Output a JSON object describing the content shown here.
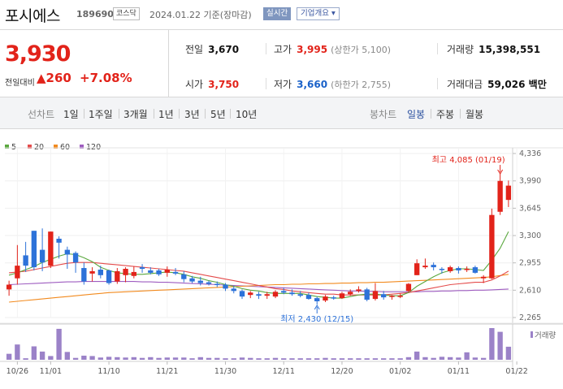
{
  "header": {
    "name": "포시에스",
    "code": "189690",
    "market": "코스닥",
    "date": "2024.01.22  기준(장마감)",
    "realtime": "실시간",
    "company_info": "기업개요 ▾"
  },
  "quote": {
    "price": "3,930",
    "change_label": "전일대비",
    "change": "▲260",
    "percent": "+7.08%"
  },
  "stats": {
    "prev_label": "전일",
    "prev": "3,670",
    "high_label": "고가",
    "high": "3,995",
    "high_limit": "(상한가 5,100)",
    "volume_label": "거래량",
    "volume": "15,398,551",
    "open_label": "시가",
    "open": "3,750",
    "low_label": "저가",
    "low": "3,660",
    "low_limit": "(하한가 2,755)",
    "amount_label": "거래대금",
    "amount": "59,026 백만"
  },
  "tabs": {
    "line_chart": "선차트",
    "periods": [
      "1일",
      "1주일",
      "3개월",
      "1년",
      "3년",
      "5년",
      "10년"
    ],
    "candle_chart": "봉차트",
    "candles": [
      "일봉",
      "주봉",
      "월봉"
    ]
  },
  "legend": [
    {
      "label": "5",
      "color": "#5aa83e"
    },
    {
      "label": "20",
      "color": "#e44b4b"
    },
    {
      "label": "60",
      "color": "#f28a1e"
    },
    {
      "label": "120",
      "color": "#9e5cc0"
    }
  ],
  "chart_data": {
    "type": "candlestick",
    "y_ticks": [
      2265,
      2610,
      2955,
      3300,
      3645,
      3990,
      4336
    ],
    "y_tick_labels": [
      "2,265",
      "2,610",
      "2,955",
      "3,300",
      "3,645",
      "3,990",
      "4,336"
    ],
    "ylim": [
      2265,
      4336
    ],
    "x_tick_labels": [
      "10/26",
      "11/01",
      "11/10",
      "11/21",
      "11/30",
      "12/11",
      "12/20",
      "01/02",
      "01/11",
      "01/22"
    ],
    "x_tick_index": [
      1,
      5,
      12,
      19,
      26,
      33,
      40,
      47,
      54,
      61
    ],
    "high_annotation": "최고 4,085 (01/19)",
    "low_annotation": "최저 2,430 (12/15)",
    "high_index": 59,
    "low_index": 37,
    "volume_label": "거래량",
    "candles": [
      [
        2620,
        2730,
        2540,
        2680
      ],
      [
        2760,
        3180,
        2680,
        2920
      ],
      [
        3050,
        3220,
        2840,
        2920
      ],
      [
        3360,
        3360,
        2860,
        2900
      ],
      [
        3120,
        3390,
        2850,
        2960
      ],
      [
        2920,
        3350,
        2890,
        3350
      ],
      [
        3260,
        3290,
        3010,
        3210
      ],
      [
        3120,
        3160,
        2880,
        3060
      ],
      [
        3080,
        3100,
        2830,
        2960
      ],
      [
        2890,
        2960,
        2680,
        2720
      ],
      [
        2820,
        2900,
        2720,
        2850
      ],
      [
        2870,
        2920,
        2760,
        2800
      ],
      [
        2860,
        2870,
        2680,
        2700
      ],
      [
        2720,
        2890,
        2690,
        2850
      ],
      [
        2800,
        2900,
        2710,
        2880
      ],
      [
        2790,
        2910,
        2760,
        2840
      ],
      [
        2900,
        2940,
        2830,
        2880
      ],
      [
        2860,
        2900,
        2810,
        2830
      ],
      [
        2860,
        2880,
        2790,
        2810
      ],
      [
        2830,
        2910,
        2780,
        2870
      ],
      [
        2840,
        2890,
        2800,
        2820
      ],
      [
        2810,
        2850,
        2710,
        2750
      ],
      [
        2760,
        2790,
        2700,
        2720
      ],
      [
        2730,
        2780,
        2670,
        2700
      ],
      [
        2710,
        2730,
        2670,
        2690
      ],
      [
        2690,
        2720,
        2650,
        2680
      ],
      [
        2680,
        2700,
        2600,
        2630
      ],
      [
        2630,
        2660,
        2570,
        2600
      ],
      [
        2600,
        2620,
        2500,
        2530
      ],
      [
        2550,
        2600,
        2510,
        2580
      ],
      [
        2560,
        2590,
        2500,
        2540
      ],
      [
        2540,
        2590,
        2500,
        2560
      ],
      [
        2530,
        2610,
        2510,
        2590
      ],
      [
        2600,
        2640,
        2560,
        2580
      ],
      [
        2580,
        2620,
        2540,
        2560
      ],
      [
        2560,
        2600,
        2520,
        2540
      ],
      [
        2550,
        2580,
        2490,
        2500
      ],
      [
        2510,
        2530,
        2430,
        2470
      ],
      [
        2480,
        2550,
        2460,
        2530
      ],
      [
        2520,
        2540,
        2490,
        2510
      ],
      [
        2510,
        2590,
        2500,
        2570
      ],
      [
        2560,
        2620,
        2540,
        2590
      ],
      [
        2600,
        2660,
        2580,
        2620
      ],
      [
        2620,
        2640,
        2470,
        2490
      ],
      [
        2500,
        2700,
        2480,
        2600
      ],
      [
        2560,
        2600,
        2490,
        2520
      ],
      [
        2530,
        2550,
        2490,
        2540
      ],
      [
        2530,
        2570,
        2510,
        2540
      ],
      [
        2600,
        2700,
        2580,
        2690
      ],
      [
        2800,
        3000,
        2800,
        2950
      ],
      [
        2900,
        3010,
        2880,
        2920
      ],
      [
        2930,
        2960,
        2860,
        2900
      ],
      [
        2880,
        2900,
        2820,
        2870
      ],
      [
        2850,
        2920,
        2830,
        2900
      ],
      [
        2890,
        2910,
        2820,
        2860
      ],
      [
        2870,
        2910,
        2840,
        2880
      ],
      [
        2900,
        2920,
        2820,
        2830
      ],
      [
        2760,
        2800,
        2700,
        2780
      ],
      [
        2760,
        3640,
        2750,
        3560
      ],
      [
        3600,
        4085,
        3560,
        3990
      ],
      [
        3750,
        3995,
        3660,
        3930
      ]
    ],
    "volumes": [
      1.6,
      4.1,
      0.4,
      3.6,
      2.2,
      1.0,
      8.3,
      2.1,
      0.5,
      1.1,
      1.0,
      0.6,
      0.8,
      0.7,
      0.6,
      0.7,
      0.5,
      0.7,
      0.5,
      0.6,
      0.6,
      0.6,
      0.4,
      0.7,
      0.5,
      0.5,
      0.4,
      0.4,
      0.6,
      0.5,
      0.4,
      0.4,
      0.5,
      0.4,
      0.4,
      0.4,
      0.4,
      0.4,
      0.5,
      0.4,
      0.4,
      0.4,
      0.4,
      0.4,
      0.4,
      0.4,
      0.4,
      0.4,
      0.7,
      2.2,
      0.7,
      0.5,
      0.8,
      0.7,
      0.6,
      2.0,
      0.6,
      0.5,
      8.5,
      7.5,
      3.5
    ],
    "ma": {
      "5": [
        2800,
        2830,
        2870,
        2910,
        2960,
        3000,
        3040,
        3070,
        3060,
        3020,
        2970,
        2900,
        2860,
        2830,
        2820,
        2810,
        2810,
        2820,
        2830,
        2840,
        2830,
        2810,
        2780,
        2760,
        2730,
        2710,
        2680,
        2660,
        2630,
        2610,
        2600,
        2580,
        2570,
        2570,
        2570,
        2570,
        2550,
        2530,
        2520,
        2510,
        2510,
        2530,
        2550,
        2560,
        2560,
        2550,
        2540,
        2540,
        2580,
        2660,
        2720,
        2780,
        2830,
        2860,
        2880,
        2880,
        2870,
        2860,
        2990,
        3140,
        3350
      ],
      "20": [
        2830,
        2840,
        2850,
        2870,
        2890,
        2910,
        2930,
        2950,
        2960,
        2960,
        2960,
        2950,
        2940,
        2930,
        2920,
        2910,
        2900,
        2890,
        2880,
        2870,
        2860,
        2850,
        2830,
        2810,
        2790,
        2770,
        2750,
        2730,
        2710,
        2690,
        2670,
        2650,
        2630,
        2620,
        2600,
        2590,
        2580,
        2570,
        2560,
        2560,
        2550,
        2550,
        2550,
        2550,
        2550,
        2550,
        2560,
        2570,
        2580,
        2600,
        2620,
        2640,
        2660,
        2680,
        2690,
        2700,
        2710,
        2710,
        2740,
        2790,
        2850
      ],
      "60": [
        2460,
        2470,
        2480,
        2490,
        2500,
        2510,
        2520,
        2530,
        2540,
        2550,
        2560,
        2570,
        2580,
        2585,
        2590,
        2595,
        2600,
        2605,
        2610,
        2615,
        2620,
        2625,
        2630,
        2635,
        2640,
        2645,
        2650,
        2655,
        2660,
        2665,
        2670,
        2675,
        2680,
        2680,
        2685,
        2685,
        2690,
        2690,
        2695,
        2695,
        2700,
        2700,
        2705,
        2705,
        2710,
        2710,
        2715,
        2720,
        2725,
        2730,
        2735,
        2740,
        2745,
        2750,
        2755,
        2760,
        2765,
        2770,
        2780,
        2795,
        2810
      ],
      "120": [
        2680,
        2685,
        2690,
        2695,
        2700,
        2705,
        2710,
        2715,
        2715,
        2720,
        2720,
        2720,
        2720,
        2720,
        2720,
        2720,
        2715,
        2715,
        2710,
        2710,
        2705,
        2700,
        2695,
        2690,
        2685,
        2680,
        2675,
        2670,
        2665,
        2660,
        2655,
        2650,
        2645,
        2640,
        2635,
        2630,
        2625,
        2620,
        2615,
        2610,
        2605,
        2600,
        2600,
        2595,
        2595,
        2590,
        2590,
        2590,
        2590,
        2590,
        2595,
        2595,
        2600,
        2600,
        2605,
        2605,
        2610,
        2610,
        2615,
        2620,
        2625
      ]
    }
  }
}
